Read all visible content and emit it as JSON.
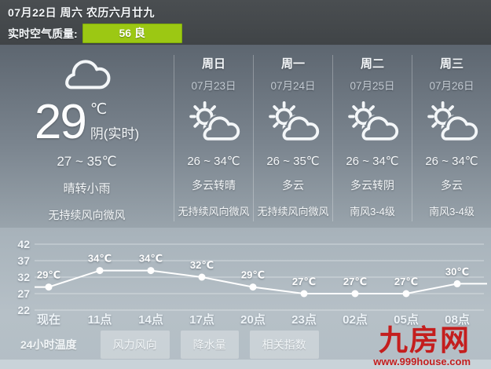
{
  "header": {
    "date_line": "07月22日 周六 农历六月廿九",
    "aqi_label": "实时空气质量:",
    "aqi_value": "56 良",
    "aqi_color": "#9cc813"
  },
  "current": {
    "icon": "cloud-overcast-icon",
    "temp": "29",
    "unit": "℃",
    "condition": "阴(实时)",
    "range": "27 ~ 35℃",
    "weather": "晴转小雨",
    "wind": "无持续风向微风"
  },
  "forecast": {
    "days": [
      {
        "day": "周日",
        "date": "07月23日",
        "icon": "sun-cloud-icon",
        "range": "26 ~ 34℃",
        "weather": "多云转晴",
        "wind": "无持续风向微风"
      },
      {
        "day": "周一",
        "date": "07月24日",
        "icon": "sun-cloud-icon",
        "range": "26 ~ 35℃",
        "weather": "多云",
        "wind": "无持续风向微风"
      },
      {
        "day": "周二",
        "date": "07月25日",
        "icon": "sun-cloud-icon",
        "range": "26 ~ 34℃",
        "weather": "多云转阴",
        "wind": "南风3-4级"
      },
      {
        "day": "周三",
        "date": "07月26日",
        "icon": "sun-cloud-icon",
        "range": "26 ~ 34℃",
        "weather": "多云",
        "wind": "南风3-4级"
      }
    ]
  },
  "chart_data": {
    "type": "line",
    "title": "24小时温度",
    "x_labels": [
      "现在",
      "11点",
      "14点",
      "17点",
      "20点",
      "23点",
      "02点",
      "05点",
      "08点"
    ],
    "values": [
      29,
      34,
      34,
      32,
      29,
      27,
      27,
      27,
      30
    ],
    "unit": "℃",
    "ylabel": "",
    "xlabel": "",
    "ylim": [
      22,
      42
    ],
    "yticks": [
      42,
      37,
      32,
      27,
      22
    ],
    "grid": true,
    "legend": "none",
    "line_color": "#ffffff"
  },
  "tabs": {
    "items": [
      {
        "label": "24小时温度",
        "active": true
      },
      {
        "label": "风力风向",
        "active": false
      },
      {
        "label": "降水量",
        "active": false
      },
      {
        "label": "相关指数",
        "active": false
      }
    ]
  },
  "watermark": {
    "logo": "九房网",
    "url": "www.999house.com"
  }
}
